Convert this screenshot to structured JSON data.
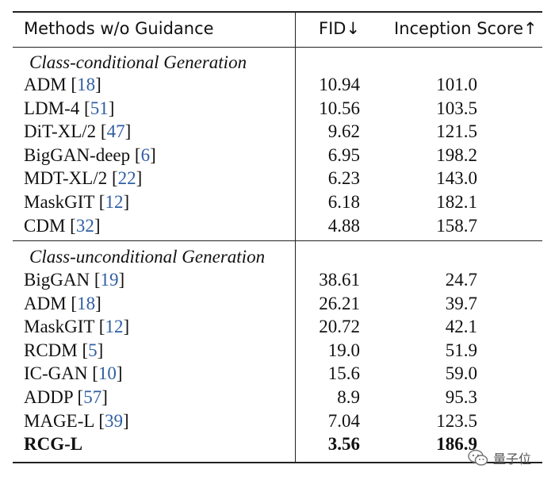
{
  "header": {
    "methods": "Methods w/o Guidance",
    "fid": "FID↓",
    "inception": "Inception Score↑"
  },
  "sections": [
    {
      "title": "Class-conditional Generation",
      "rows": [
        {
          "method": "ADM",
          "ref": "18",
          "fid": "10.94",
          "is": "101.0"
        },
        {
          "method": "LDM-4",
          "ref": "51",
          "fid": "10.56",
          "is": "103.5"
        },
        {
          "method": "DiT-XL/2",
          "ref": "47",
          "fid": "9.62",
          "is": "121.5"
        },
        {
          "method": "BigGAN-deep",
          "ref": "6",
          "fid": "6.95",
          "is": "198.2"
        },
        {
          "method": "MDT-XL/2",
          "ref": "22",
          "fid": "6.23",
          "is": "143.0"
        },
        {
          "method": "MaskGIT",
          "ref": "12",
          "fid": "6.18",
          "is": "182.1"
        },
        {
          "method": "CDM",
          "ref": "32",
          "fid": "4.88",
          "is": "158.7"
        }
      ]
    },
    {
      "title": "Class-unconditional Generation",
      "rows": [
        {
          "method": "BigGAN",
          "ref": "19",
          "fid": "38.61",
          "is": "24.7"
        },
        {
          "method": "ADM",
          "ref": "18",
          "fid": "26.21",
          "is": "39.7"
        },
        {
          "method": "MaskGIT",
          "ref": "12",
          "fid": "20.72",
          "is": "42.1"
        },
        {
          "method": "RCDM",
          "ref": "5",
          "fid": "19.0",
          "is": "51.9"
        },
        {
          "method": "IC-GAN",
          "ref": "10",
          "fid": "15.6",
          "is": "59.0"
        },
        {
          "method": "ADDP",
          "ref": "57",
          "fid": "8.9",
          "is": "95.3"
        },
        {
          "method": "MAGE-L",
          "ref": "39",
          "fid": "7.04",
          "is": "123.5"
        },
        {
          "method": "RCG-L",
          "ref": "",
          "fid": "3.56",
          "is": "186.9",
          "bold": true
        }
      ]
    }
  ],
  "watermark": {
    "text": "量子位",
    "icon": "wechat-logo-icon"
  }
}
